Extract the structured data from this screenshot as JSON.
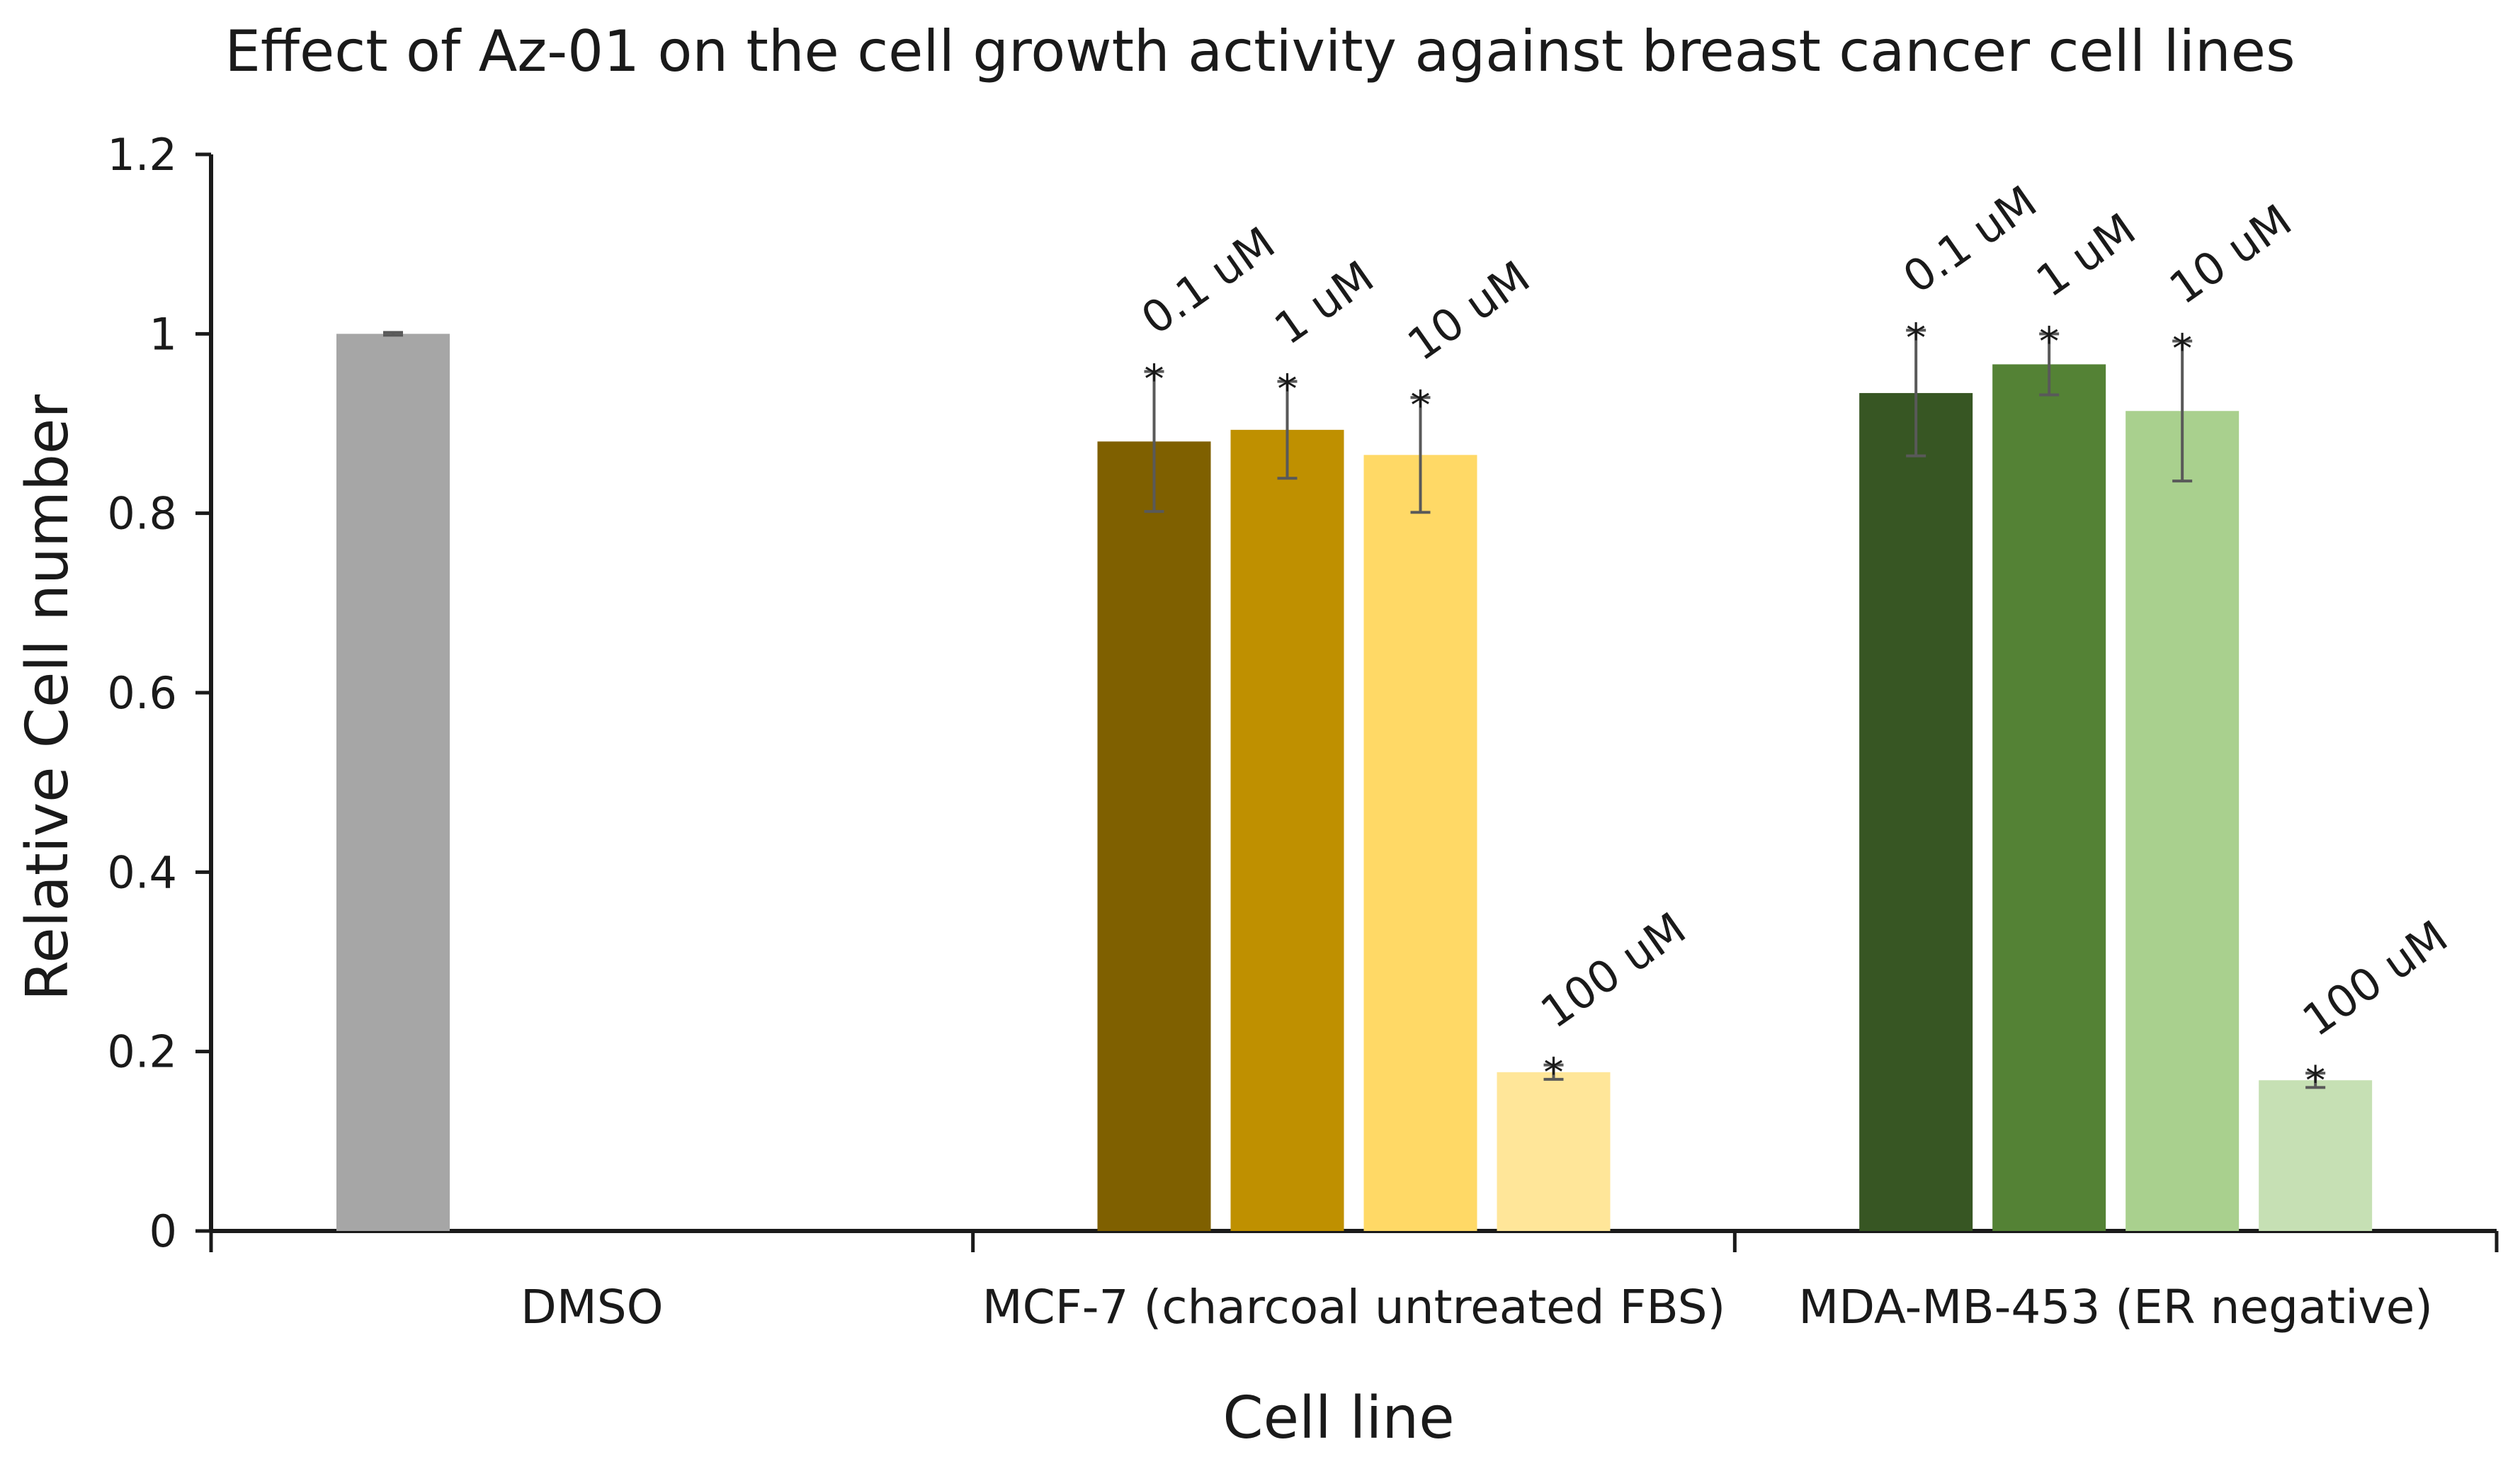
{
  "chart_data": {
    "type": "bar",
    "title": "Effect of Az-01 on the cell growth activity against breast cancer cell lines",
    "xlabel": "Cell line",
    "ylabel": "Relative Cell number",
    "ylim": [
      0,
      1.2
    ],
    "yticks": [
      "0",
      "0.2",
      "0.4",
      "0.6",
      "0.8",
      "1",
      "1.2"
    ],
    "grid": false,
    "groups": [
      {
        "category": "DMSO",
        "bars": [
          {
            "dose": "",
            "value": 1.0,
            "error": 0.0015,
            "significant": false,
            "color": "#a6a6a6"
          }
        ]
      },
      {
        "category": "MCF-7 (charcoal untreated FBS)",
        "bars": [
          {
            "dose": "0.1 uM",
            "value": 0.88,
            "error": 0.078,
            "significant": true,
            "color": "#7f6000"
          },
          {
            "dose": "1 uM",
            "value": 0.893,
            "error": 0.054,
            "significant": true,
            "color": "#bf9000"
          },
          {
            "dose": "10 uM",
            "value": 0.865,
            "error": 0.064,
            "significant": true,
            "color": "#ffd966"
          },
          {
            "dose": "100 uM",
            "value": 0.177,
            "error": 0.008,
            "significant": true,
            "color": "#ffe699"
          }
        ]
      },
      {
        "category": "MDA-MB-453 (ER negative)",
        "bars": [
          {
            "dose": "0.1 uM",
            "value": 0.934,
            "error": 0.07,
            "significant": true,
            "color": "#375623"
          },
          {
            "dose": "1 uM",
            "value": 0.966,
            "error": 0.034,
            "significant": true,
            "color": "#548235"
          },
          {
            "dose": "10 uM",
            "value": 0.914,
            "error": 0.078,
            "significant": true,
            "color": "#a9d08e"
          },
          {
            "dose": "100 uM",
            "value": 0.168,
            "error": 0.008,
            "significant": true,
            "color": "#c6e0b4"
          }
        ]
      }
    ],
    "significance_marker": "*"
  }
}
